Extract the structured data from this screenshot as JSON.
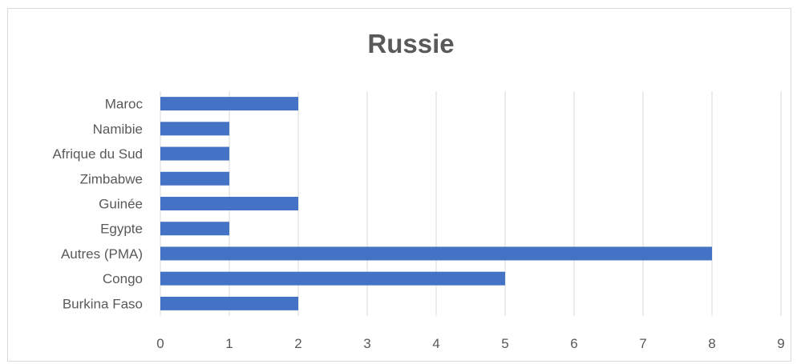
{
  "chart_data": {
    "type": "bar",
    "orientation": "horizontal",
    "title": "Russie",
    "xlabel": "",
    "ylabel": "",
    "categories": [
      "Maroc",
      "Namibie",
      "Afrique du Sud",
      "Zimbabwe",
      "Guinée",
      "Egypte",
      "Autres (PMA)",
      "Congo",
      "Burkina Faso"
    ],
    "values": [
      2,
      1,
      1,
      1,
      2,
      1,
      8,
      5,
      2
    ],
    "xlim": [
      0,
      9
    ],
    "xticks": [
      "0",
      "1",
      "2",
      "3",
      "4",
      "5",
      "6",
      "7",
      "8",
      "9"
    ],
    "grid": "vertical",
    "legend": "none",
    "bar_color": "#4472c4",
    "grid_color": "#d9d9d9",
    "text_color": "#595959"
  }
}
